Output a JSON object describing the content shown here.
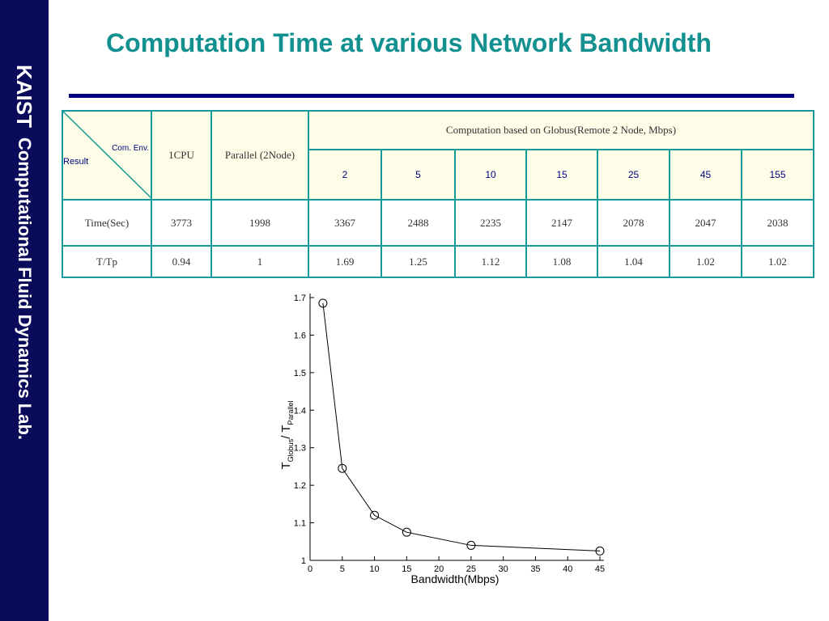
{
  "sidebar": {
    "org": "KAIST",
    "lab": "Computational Fluid Dynamics Lab."
  },
  "title": "Computation Time at various Network Bandwidth",
  "table": {
    "corner_top": "Com. Env.",
    "corner_bottom": "Result",
    "headers": [
      "1CPU",
      "Parallel (2Node)",
      "Computation based on Globus(Remote 2 Node, Mbps)"
    ],
    "bandwidths": [
      "2",
      "5",
      "10",
      "15",
      "25",
      "45",
      "155"
    ],
    "rows": [
      [
        "Time(Sec)",
        3773,
        1998,
        3367,
        2488,
        2235,
        2147,
        2078,
        2047,
        2038
      ],
      [
        "T/Tp",
        0.94,
        1,
        1.69,
        1.25,
        1.12,
        1.08,
        1.04,
        1.02,
        1.02
      ]
    ]
  },
  "chart_data": {
    "type": "line",
    "xlabel": "Bandwidth(Mbps)",
    "ylabel": [
      "T",
      "Globus",
      "/ T",
      "Parallel"
    ],
    "x": [
      2,
      5,
      10,
      15,
      25,
      45
    ],
    "values": [
      1.685,
      1.245,
      1.12,
      1.075,
      1.04,
      1.025
    ],
    "color": "#000000",
    "marker": "circle",
    "xlim": [
      0,
      45
    ],
    "ylim": [
      1,
      1.7
    ],
    "xticks": [
      0,
      5,
      10,
      15,
      20,
      25,
      30,
      35,
      40,
      45
    ],
    "yticks": [
      1,
      1.1,
      1.2,
      1.3,
      1.4,
      1.5,
      1.6,
      1.7
    ]
  }
}
